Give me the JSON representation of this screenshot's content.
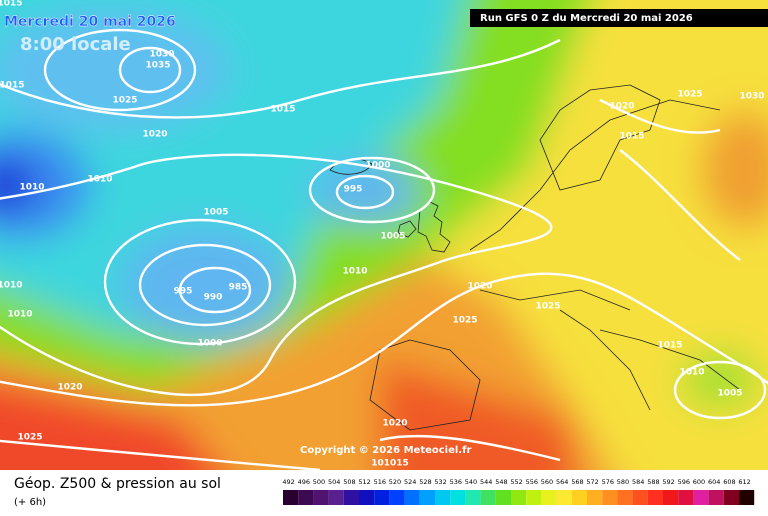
{
  "header": {
    "date": "Mercredi 20 mai 2026",
    "time": "8:00 locale",
    "run": "Run GFS 0 Z du Mercredi 20 mai 2026"
  },
  "map": {
    "isobar_labels": [
      "1015",
      "1030",
      "1035",
      "1015",
      "1025",
      "1015",
      "1020",
      "1010",
      "1010",
      "1000",
      "995",
      "1005",
      "1005",
      "1010",
      "995",
      "990",
      "985",
      "1010",
      "1010",
      "1000",
      "1020",
      "1025",
      "1025",
      "1020",
      "1015",
      "1025",
      "1030",
      "1015",
      "1010",
      "1005",
      "1020",
      "1025",
      "1020",
      "101015"
    ],
    "copyright": "Copyright © 2026 Meteociel.fr"
  },
  "footer": {
    "title": "Géop. Z500 & pression au sol",
    "step": "(+ 6h)",
    "scale": [
      492,
      496,
      500,
      504,
      508,
      512,
      516,
      520,
      524,
      528,
      532,
      536,
      540,
      544,
      548,
      552,
      556,
      560,
      564,
      568,
      572,
      576,
      580,
      584,
      588,
      592,
      596,
      600,
      604,
      608,
      612
    ]
  }
}
